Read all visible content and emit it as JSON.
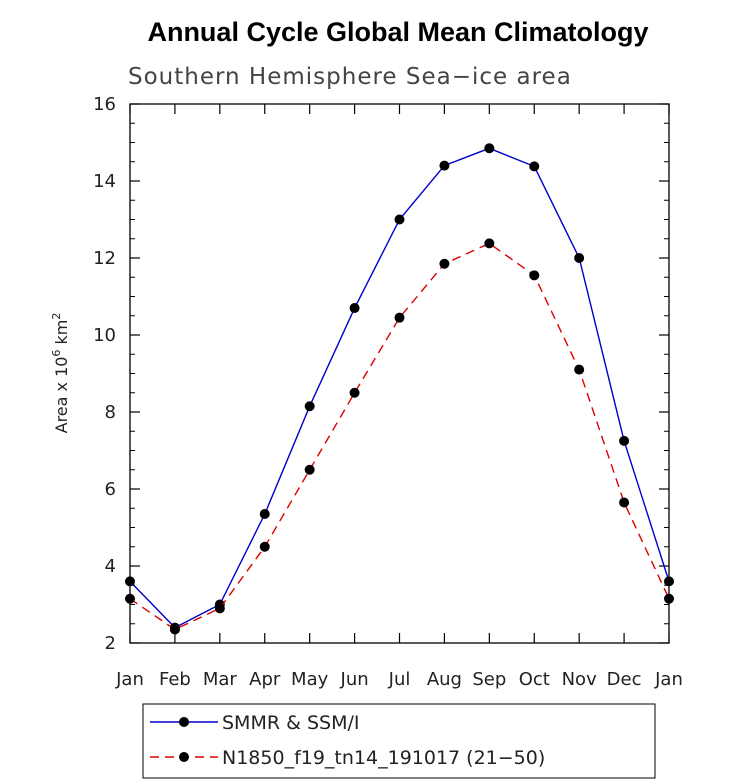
{
  "chart_data": {
    "type": "line",
    "title": "Annual Cycle Global Mean Climatology",
    "subtitle": "Southern Hemisphere Sea−ice area",
    "ylabel": {
      "prefix": "Area x 10",
      "exponent": "6",
      "middle": " km",
      "unit_exponent": "2"
    },
    "xlabel": "",
    "categories": [
      "Jan",
      "Feb",
      "Mar",
      "Apr",
      "May",
      "Jun",
      "Jul",
      "Aug",
      "Sep",
      "Oct",
      "Nov",
      "Dec",
      "Jan"
    ],
    "ylim": [
      2,
      16
    ],
    "yticks": [
      2,
      4,
      6,
      8,
      10,
      12,
      14,
      16
    ],
    "series": [
      {
        "name": "SMMR & SSM/I",
        "color": "#0000cc",
        "dash": "solid",
        "values": [
          3.6,
          2.4,
          3.0,
          5.35,
          8.15,
          10.7,
          13.0,
          14.4,
          14.85,
          14.38,
          12.0,
          7.25,
          3.6
        ]
      },
      {
        "name": "N1850_f19_tn14_191017 (21−50)",
        "color": "#dd0000",
        "dash": "dashed",
        "values": [
          3.15,
          2.35,
          2.9,
          4.5,
          6.5,
          8.5,
          10.45,
          11.85,
          12.38,
          11.55,
          9.1,
          5.65,
          3.15
        ]
      }
    ],
    "legend_placement": "bottom"
  }
}
